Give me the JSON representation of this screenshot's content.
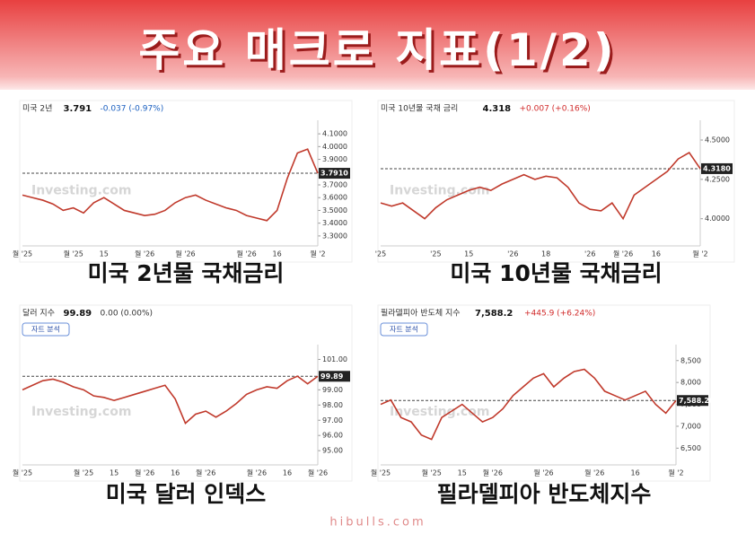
{
  "header": {
    "title": "주요 매크로 지표(1/2)"
  },
  "footer": {
    "site": "hibulls.com"
  },
  "chart_data": [
    {
      "type": "line",
      "name": "미국 2년",
      "price": "3.791",
      "change": "-0.037 (-0.97%)",
      "change_color": "#1a5fc0",
      "caption": "미국 2년물 국채금리",
      "watermark": "Investing.com",
      "color": "#c0392b",
      "last_price": {
        "value": 3.791,
        "label": "3.7910"
      },
      "ylim": [
        3.25,
        4.15
      ],
      "yticks": [
        {
          "value": 3.3,
          "label": "3.3000"
        },
        {
          "value": 3.4,
          "label": "3.4000"
        },
        {
          "value": 3.5,
          "label": "3.5000"
        },
        {
          "value": 3.6,
          "label": "3.6000"
        },
        {
          "value": 3.7,
          "label": "3.7000"
        },
        {
          "value": 3.8,
          "label": "3.8000"
        },
        {
          "value": 3.9,
          "label": "3.9000"
        },
        {
          "value": 4.0,
          "label": "4.0000"
        },
        {
          "value": 4.1,
          "label": "4.1000"
        }
      ],
      "categories": [
        "월 '25",
        null,
        null,
        null,
        null,
        "월 '25",
        null,
        null,
        "15",
        null,
        null,
        null,
        "월 '26",
        null,
        null,
        null,
        "월 '26",
        null,
        null,
        null,
        null,
        null,
        "월 '26",
        null,
        null,
        "16",
        null,
        null,
        null,
        "월 '2"
      ],
      "values": [
        3.62,
        3.6,
        3.58,
        3.55,
        3.5,
        3.52,
        3.48,
        3.56,
        3.6,
        3.55,
        3.5,
        3.48,
        3.46,
        3.47,
        3.5,
        3.56,
        3.6,
        3.62,
        3.58,
        3.55,
        3.52,
        3.5,
        3.46,
        3.44,
        3.42,
        3.5,
        3.75,
        3.95,
        3.98,
        3.791
      ]
    },
    {
      "type": "line",
      "name": "미국 10년물 국채 금리",
      "price": "4.318",
      "change": "+0.007 (+0.16%)",
      "change_color": "#d12a2a",
      "caption": "미국 10년물 국채금리",
      "watermark": "Investing.com",
      "color": "#c0392b",
      "last_price": {
        "value": 4.318,
        "label": "4.3180"
      },
      "ylim": [
        3.85,
        4.58
      ],
      "yticks": [
        {
          "value": 4.0,
          "label": "4.0000"
        },
        {
          "value": 4.25,
          "label": "4.2500"
        },
        {
          "value": 4.5,
          "label": "4.5000"
        }
      ],
      "categories": [
        "'25",
        null,
        null,
        null,
        null,
        "'25",
        null,
        null,
        "15",
        null,
        null,
        null,
        "'26",
        null,
        null,
        "18",
        null,
        null,
        null,
        "'26",
        null,
        null,
        "월 '26",
        null,
        null,
        "16",
        null,
        null,
        null,
        "월 '2"
      ],
      "values": [
        4.1,
        4.08,
        4.1,
        4.05,
        4.0,
        4.07,
        4.12,
        4.15,
        4.18,
        4.2,
        4.18,
        4.22,
        4.25,
        4.28,
        4.25,
        4.27,
        4.26,
        4.2,
        4.1,
        4.06,
        4.05,
        4.1,
        4.0,
        4.15,
        4.2,
        4.25,
        4.3,
        4.38,
        4.42,
        4.318
      ]
    },
    {
      "type": "line",
      "name": "달러 지수",
      "price": "99.89",
      "change": "0.00 (0.00%)",
      "change_color": "#333333",
      "badge": "자트 분석",
      "caption": "미국 달러 인덱스",
      "watermark": "Investing.com",
      "color": "#c0392b",
      "last_price": {
        "value": 99.89,
        "label": "99.89"
      },
      "ylim": [
        94.3,
        101.5
      ],
      "yticks": [
        {
          "value": 95,
          "label": "95.00"
        },
        {
          "value": 96,
          "label": "96.00"
        },
        {
          "value": 97,
          "label": "97.00"
        },
        {
          "value": 98,
          "label": "98.00"
        },
        {
          "value": 99,
          "label": "99.00"
        },
        {
          "value": 101,
          "label": "101.00"
        }
      ],
      "categories": [
        "월 '25",
        null,
        null,
        null,
        null,
        null,
        "월 '25",
        null,
        null,
        "15",
        null,
        null,
        "월 '26",
        null,
        null,
        "16",
        null,
        null,
        "월 '26",
        null,
        null,
        null,
        null,
        "월 '26",
        null,
        null,
        "16",
        null,
        null,
        "월 '26"
      ],
      "values": [
        99.0,
        99.3,
        99.6,
        99.7,
        99.5,
        99.2,
        99.0,
        98.6,
        98.5,
        98.3,
        98.5,
        98.7,
        98.9,
        99.1,
        99.3,
        98.4,
        96.8,
        97.4,
        97.6,
        97.2,
        97.6,
        98.1,
        98.7,
        99.0,
        99.2,
        99.1,
        99.6,
        99.9,
        99.4,
        99.89
      ]
    },
    {
      "type": "line",
      "name": "필라델피아 반도체 지수",
      "price": "7,588.2",
      "change": "+445.9 (+6.24%)",
      "change_color": "#d12a2a",
      "badge": "자트 분석",
      "caption": "필라델피아 반도체지수",
      "watermark": "Investing.com",
      "color": "#c0392b",
      "last_price": {
        "value": 7588.2,
        "label": "7,588.20"
      },
      "ylim": [
        6200,
        8700
      ],
      "yticks": [
        {
          "value": 6500,
          "label": "6,500"
        },
        {
          "value": 7000,
          "label": "7,000"
        },
        {
          "value": 7500,
          "label": "7,500"
        },
        {
          "value": 8000,
          "label": "8,000"
        },
        {
          "value": 8500,
          "label": "8,500"
        }
      ],
      "categories": [
        "월 '25",
        null,
        null,
        null,
        null,
        "월 '25",
        null,
        null,
        "15",
        null,
        null,
        "월 '26",
        null,
        null,
        null,
        null,
        "월 '26",
        null,
        null,
        null,
        null,
        "월 '26",
        null,
        null,
        null,
        "16",
        null,
        null,
        null,
        "월 '2"
      ],
      "values": [
        7500,
        7600,
        7200,
        7100,
        6800,
        6700,
        7200,
        7350,
        7500,
        7300,
        7100,
        7200,
        7400,
        7700,
        7900,
        8100,
        8200,
        7900,
        8100,
        8250,
        8300,
        8100,
        7800,
        7700,
        7600,
        7700,
        7800,
        7500,
        7300,
        7588.2
      ]
    }
  ]
}
